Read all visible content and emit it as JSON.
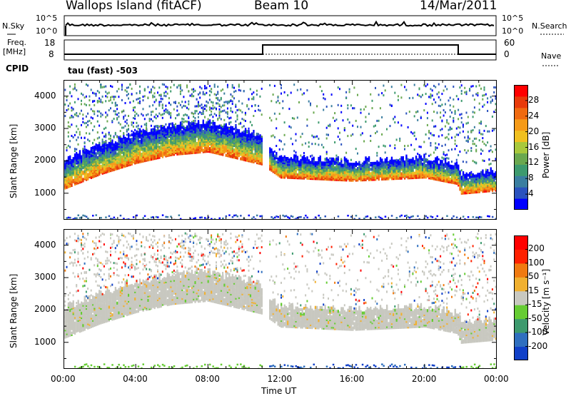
{
  "header": {
    "station": "Wallops Island (fitACF)",
    "beam": "Beam 10",
    "date": "14/Mar/2011"
  },
  "top_panels": {
    "nsky_label": "N.Sky",
    "nsky_ticks": [
      "10^5",
      "10^0"
    ],
    "nsearch_label": "N.Search",
    "nsearch_ticks": [
      "10^5",
      "10^0"
    ],
    "freq_label": "Freq.",
    "freq_unit": "[MHz]",
    "freq_ticks": [
      "18",
      "8"
    ],
    "nave_label": "Nave",
    "nave_ticks": [
      "60",
      "0"
    ],
    "cpid_label": "CPID",
    "cpid_value": "tau (fast) -503"
  },
  "chart_data": [
    {
      "type": "heatmap",
      "panel": "power",
      "ylabel": "Slant Range [km]",
      "yticks": [
        "4000",
        "3000",
        "2000",
        "1000"
      ],
      "ylim": [
        180,
        4500
      ],
      "colorbar_label": "Power [dB]",
      "colorbar_ticks": [
        "28",
        "24",
        "20",
        "16",
        "12",
        "8",
        "4"
      ],
      "colorbar_colors": [
        "#0000ff",
        "#2a52be",
        "#3a7ea0",
        "#3d9a6e",
        "#6aa84f",
        "#a8c83c",
        "#f0c020",
        "#f59a18",
        "#f06a10",
        "#e83a0a",
        "#ff0000"
      ],
      "band_lower_edge_km": [
        {
          "t": 0,
          "km": 1150
        },
        {
          "t": 2,
          "km": 1600
        },
        {
          "t": 4,
          "km": 1950
        },
        {
          "t": 6,
          "km": 2200
        },
        {
          "t": 8,
          "km": 2300
        },
        {
          "t": 9.5,
          "km": 2100
        },
        {
          "t": 11,
          "km": 1900
        },
        {
          "t": 12,
          "km": 1500
        },
        {
          "t": 16,
          "km": 1400
        },
        {
          "t": 20,
          "km": 1500
        },
        {
          "t": 21.8,
          "km": 1300
        },
        {
          "t": 22,
          "km": 1000
        },
        {
          "t": 24,
          "km": 1100
        }
      ]
    },
    {
      "type": "heatmap",
      "panel": "velocity",
      "xlabel": "Time UT",
      "xticks": [
        "00:00",
        "04:00",
        "08:00",
        "12:00",
        "16:00",
        "20:00",
        "00:00"
      ],
      "xlim": [
        0,
        24
      ],
      "ylabel": "Slant Range [km]",
      "yticks": [
        "4000",
        "3000",
        "2000",
        "1000"
      ],
      "ylim": [
        180,
        4500
      ],
      "colorbar_label": "Velocity [m s⁻¹]",
      "colorbar_ticks": [
        "200",
        "100",
        "50",
        "15",
        "-15",
        "-50",
        "-100",
        "-200"
      ],
      "colorbar_colors": [
        "#1040c8",
        "#2f6fbf",
        "#3d9a6e",
        "#66cc33",
        "#c8c8c0",
        "#f0b030",
        "#f07a10",
        "#ff2000",
        "#ff0000"
      ]
    }
  ]
}
